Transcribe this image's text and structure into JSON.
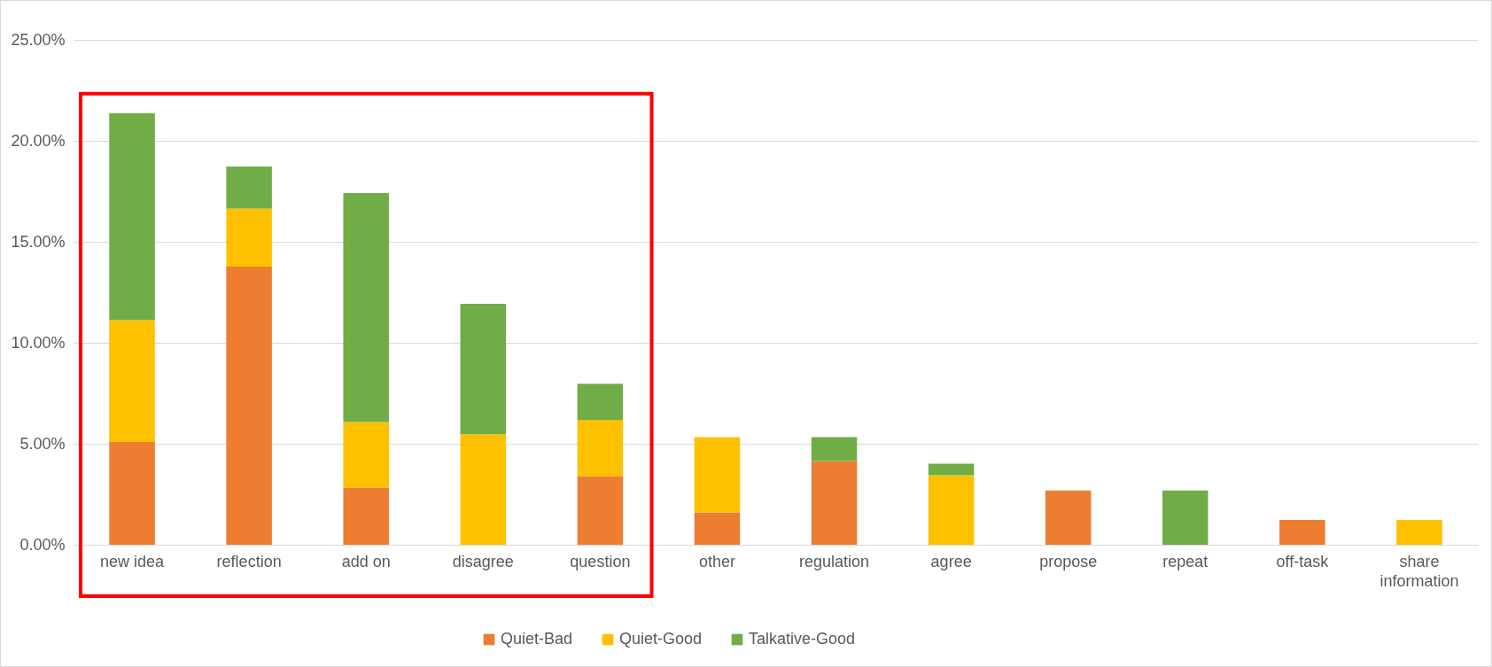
{
  "chart_data": {
    "type": "bar",
    "stacked": true,
    "categories": [
      "new idea",
      "reflection",
      "add on",
      "disagree",
      "question",
      "other",
      "regulation",
      "agree",
      "propose",
      "repeat",
      "off-task",
      "share\ninformation"
    ],
    "series": [
      {
        "name": "Quiet-Bad",
        "color": "#ed7d31",
        "values": [
          5.09,
          13.77,
          2.83,
          null,
          3.4,
          1.6,
          4.15,
          null,
          2.69,
          null,
          1.23,
          null
        ]
      },
      {
        "name": "Quiet-Good",
        "color": "#ffc000",
        "values": [
          6.04,
          2.88,
          3.25,
          5.47,
          2.78,
          3.73,
          null,
          3.44,
          null,
          null,
          null,
          1.23
        ]
      },
      {
        "name": "Talkative-Good",
        "color": "#70ad47",
        "values": [
          10.24,
          2.08,
          11.33,
          6.46,
          1.79,
          null,
          1.18,
          0.57,
          null,
          2.69,
          null,
          null
        ]
      }
    ],
    "ylim": [
      0,
      25
    ],
    "yticks": [
      {
        "value": 0,
        "label": "0.00%"
      },
      {
        "value": 5,
        "label": "5.00%"
      },
      {
        "value": 10,
        "label": "10.00%"
      },
      {
        "value": 15,
        "label": "15.00%"
      },
      {
        "value": 20,
        "label": "20.00%"
      },
      {
        "value": 25,
        "label": "25.00%"
      }
    ],
    "grid": "y",
    "legend": "bottom"
  }
}
